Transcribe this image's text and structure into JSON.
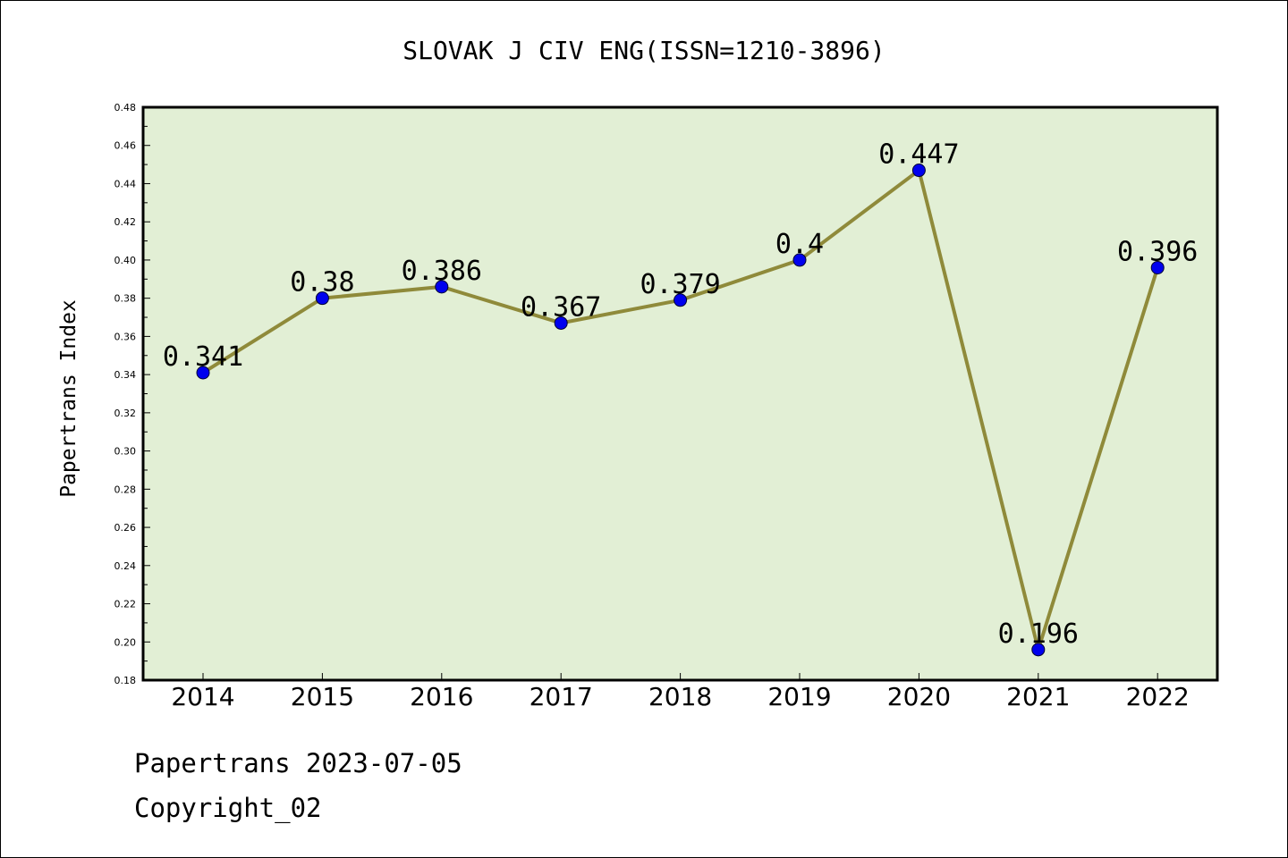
{
  "footer": {
    "line1": "Papertrans 2023-07-05",
    "line2": "Copyright_02"
  },
  "chart_data": {
    "type": "line",
    "title": "SLOVAK J CIV ENG(ISSN=1210-3896)",
    "xlabel": "",
    "ylabel": "Papertrans Index",
    "categories": [
      "2014",
      "2015",
      "2016",
      "2017",
      "2018",
      "2019",
      "2020",
      "2021",
      "2022"
    ],
    "values": [
      0.341,
      0.38,
      0.386,
      0.367,
      0.379,
      0.4,
      0.447,
      0.196,
      0.396
    ],
    "data_labels": [
      "0.341",
      "0.38",
      "0.386",
      "0.367",
      "0.379",
      "0.4",
      "0.447",
      "0.196",
      "0.396"
    ],
    "ylim": [
      0.18,
      0.48
    ],
    "yticks": [
      "0.18",
      "0.20",
      "0.22",
      "0.24",
      "0.26",
      "0.28",
      "0.30",
      "0.32",
      "0.34",
      "0.36",
      "0.38",
      "0.40",
      "0.42",
      "0.44",
      "0.46",
      "0.48"
    ],
    "grid": false,
    "colors": {
      "plot_background": "#e2efd5",
      "line": "#8f8a3a",
      "marker": "#0000ee"
    }
  }
}
